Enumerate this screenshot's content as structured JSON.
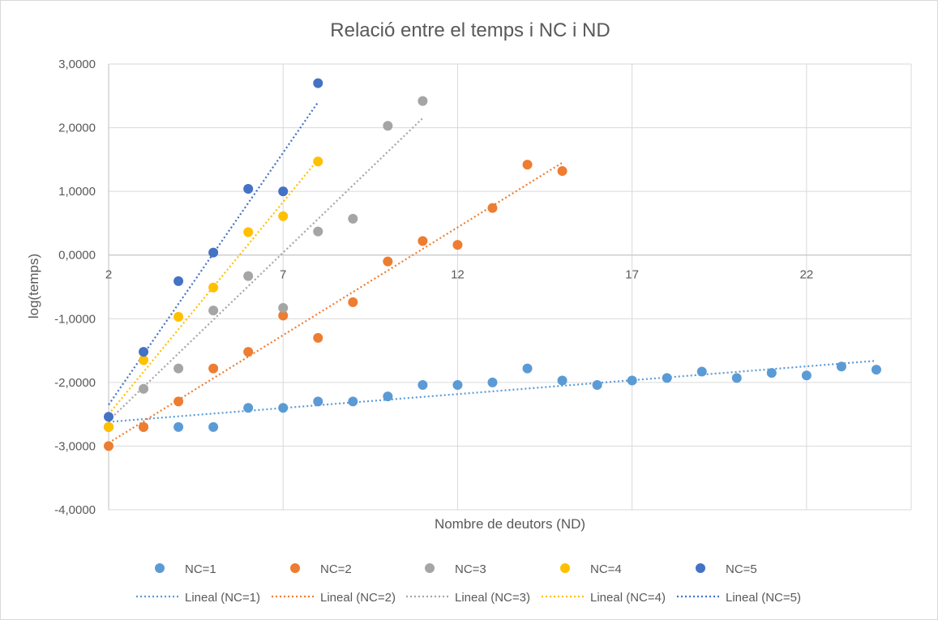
{
  "chart_data": {
    "type": "scatter",
    "title": "Relació entre el temps i NC i ND",
    "xlabel": "Nombre de deutors (ND)",
    "ylabel": "log(temps)",
    "xlim": [
      2,
      25
    ],
    "ylim": [
      -4,
      3
    ],
    "x_ticks": [
      2,
      7,
      12,
      17,
      22
    ],
    "x_tick_labels": [
      "2",
      "7",
      "12",
      "17",
      "22"
    ],
    "y_ticks": [
      -4,
      -3,
      -2,
      -1,
      0,
      1,
      2,
      3
    ],
    "y_tick_labels": [
      "-4,0000",
      "-3,0000",
      "-2,0000",
      "-1,0000",
      "0,0000",
      "1,0000",
      "2,0000",
      "3,0000"
    ],
    "grid": true,
    "legend_position": "bottom",
    "series": [
      {
        "name": "NC=1",
        "color": "#5B9BD5",
        "x": [
          2,
          3,
          4,
          5,
          6,
          7,
          8,
          9,
          10,
          11,
          12,
          13,
          14,
          15,
          16,
          17,
          18,
          19,
          20,
          21,
          22,
          23,
          24
        ],
        "y": [
          -2.7,
          -2.7,
          -2.7,
          -2.7,
          -2.4,
          -2.4,
          -2.3,
          -2.3,
          -2.22,
          -2.04,
          -2.04,
          -2.0,
          -1.78,
          -1.97,
          -2.04,
          -1.97,
          -1.93,
          -1.83,
          -1.93,
          -1.85,
          -1.89,
          -1.75,
          -1.8
        ]
      },
      {
        "name": "NC=2",
        "color": "#ED7D31",
        "x": [
          2,
          3,
          4,
          5,
          6,
          7,
          8,
          9,
          10,
          11,
          12,
          13,
          14,
          15
        ],
        "y": [
          -3.0,
          -2.7,
          -2.3,
          -1.78,
          -1.52,
          -0.95,
          -1.3,
          -0.74,
          -0.1,
          0.22,
          0.16,
          0.74,
          1.42,
          1.32
        ]
      },
      {
        "name": "NC=3",
        "color": "#A5A5A5",
        "x": [
          2,
          3,
          4,
          5,
          6,
          7,
          8,
          9,
          10,
          11
        ],
        "y": [
          -2.7,
          -2.1,
          -1.78,
          -0.87,
          -0.33,
          -0.83,
          0.37,
          0.57,
          2.03,
          2.42
        ]
      },
      {
        "name": "NC=4",
        "color": "#FFC000",
        "x": [
          2,
          3,
          4,
          5,
          6,
          7,
          8
        ],
        "y": [
          -2.7,
          -1.65,
          -0.97,
          -0.51,
          0.36,
          0.61,
          1.47
        ]
      },
      {
        "name": "NC=5",
        "color": "#4472C4",
        "x": [
          2,
          3,
          4,
          5,
          6,
          7,
          8
        ],
        "y": [
          -2.54,
          -1.52,
          -0.41,
          0.04,
          1.04,
          1.0,
          2.7
        ]
      }
    ],
    "trendlines": [
      {
        "name": "Lineal (NC=1)",
        "color": "#5B9BD5",
        "x_range": [
          2,
          24
        ],
        "y_range": [
          -2.62,
          -1.66
        ]
      },
      {
        "name": "Lineal (NC=2)",
        "color": "#ED7D31",
        "x_range": [
          2,
          15
        ],
        "y_range": [
          -2.95,
          1.45
        ]
      },
      {
        "name": "Lineal (NC=3)",
        "color": "#A5A5A5",
        "x_range": [
          2,
          11
        ],
        "y_range": [
          -2.6,
          2.15
        ]
      },
      {
        "name": "Lineal (NC=4)",
        "color": "#FFC000",
        "x_range": [
          2,
          8
        ],
        "y_range": [
          -2.5,
          1.5
        ]
      },
      {
        "name": "Lineal (NC=5)",
        "color": "#4472C4",
        "x_range": [
          2,
          8
        ],
        "y_range": [
          -2.35,
          2.4
        ]
      }
    ]
  }
}
